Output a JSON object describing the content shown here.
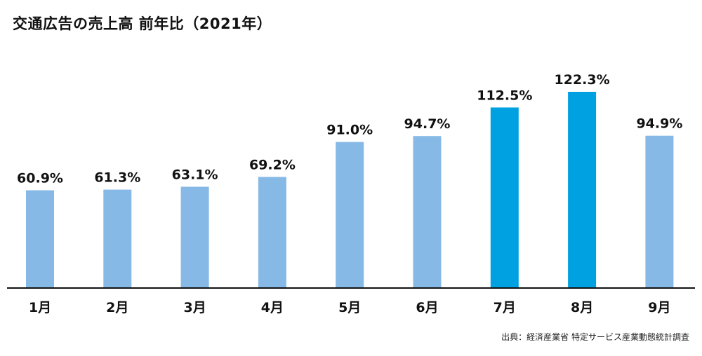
{
  "chart_data": {
    "type": "bar",
    "title": "交通広告の売上高 前年比（2021年）",
    "categories": [
      "1月",
      "2月",
      "3月",
      "4月",
      "5月",
      "6月",
      "7月",
      "8月",
      "9月"
    ],
    "values": [
      60.9,
      61.3,
      63.1,
      69.2,
      91.0,
      94.7,
      112.5,
      122.3,
      94.9
    ],
    "value_labels": [
      "60.9%",
      "61.3%",
      "63.1%",
      "69.2%",
      "91.0%",
      "94.7%",
      "112.5%",
      "122.3%",
      "94.9%"
    ],
    "unit": "%",
    "ylim": [
      0,
      138
    ],
    "grid": false,
    "bar_colors": [
      "#86b9e5",
      "#86b9e5",
      "#86b9e5",
      "#86b9e5",
      "#86b9e5",
      "#86b9e5",
      "#00a1e1",
      "#00a1e1",
      "#86b9e5"
    ],
    "axis_color": "#111111",
    "source": "出典：経済産業省 特定サービス産業動態統計調査"
  }
}
